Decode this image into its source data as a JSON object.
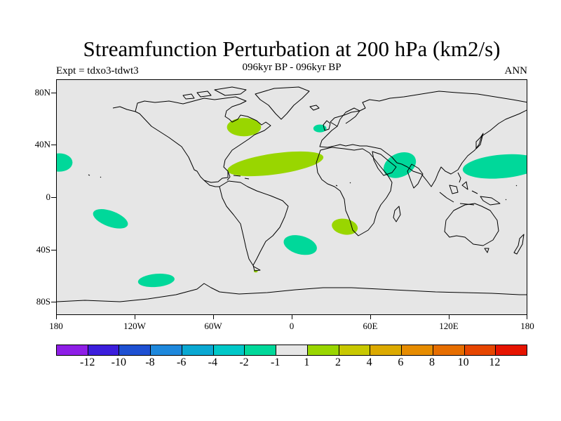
{
  "title": "Streamfunction Perturbation at 200 hPa (km2/s)",
  "experiment": "Expt = tdxo3-tdwt3",
  "period": "096kyr BP - 096kyr BP",
  "season": "ANN",
  "map": {
    "projection": "cylindrical-equidistant",
    "lon_range": [
      -180,
      180
    ],
    "lat_range": [
      -90,
      90
    ],
    "background_color": "#e6e6e6",
    "lat_labels": [
      {
        "lat": 80,
        "text": "80N"
      },
      {
        "lat": 40,
        "text": "40N"
      },
      {
        "lat": 0,
        "text": "0"
      },
      {
        "lat": -40,
        "text": "40S"
      },
      {
        "lat": -80,
        "text": "80S"
      }
    ],
    "lon_labels": [
      {
        "lon": -180,
        "text": "180"
      },
      {
        "lon": -120,
        "text": "120W"
      },
      {
        "lon": -60,
        "text": "60W"
      },
      {
        "lon": 0,
        "text": "0"
      },
      {
        "lon": 60,
        "text": "60E"
      },
      {
        "lon": 120,
        "text": "120E"
      },
      {
        "lon": 180,
        "text": "180"
      }
    ],
    "anomalies": [
      {
        "name": "north-atlantic",
        "lon": -37,
        "lat": 54,
        "rlon": 13,
        "rlat": 7,
        "rot": 0,
        "color": "#99d600"
      },
      {
        "name": "north-africa-atlantic",
        "lon": -13,
        "lat": 26,
        "rlon": 37,
        "rlat": 8,
        "rot": -8,
        "color": "#99d600"
      },
      {
        "name": "southern-africa",
        "lon": 40,
        "lat": -22,
        "rlon": 10,
        "rlat": 6,
        "rot": 10,
        "color": "#99d600"
      },
      {
        "name": "south-atlantic-small",
        "lon": -28,
        "lat": -56,
        "rlon": 1.5,
        "rlat": 1,
        "rot": 0,
        "color": "#99d600"
      },
      {
        "name": "north-pacific-east",
        "lon": -178,
        "lat": 27,
        "rlon": 10,
        "rlat": 7,
        "rot": 0,
        "color": "#00d89a"
      },
      {
        "name": "europe-small",
        "lon": 21,
        "lat": 53,
        "rlon": 5,
        "rlat": 3,
        "rot": 0,
        "color": "#00d89a"
      },
      {
        "name": "india",
        "lon": 82,
        "lat": 25,
        "rlon": 13,
        "rlat": 9,
        "rot": -25,
        "color": "#00d89a"
      },
      {
        "name": "west-pacific",
        "lon": 160,
        "lat": 24,
        "rlon": 30,
        "rlat": 9,
        "rot": -5,
        "color": "#00d89a"
      },
      {
        "name": "south-pacific",
        "lon": -139,
        "lat": -16,
        "rlon": 14,
        "rlat": 6,
        "rot": 20,
        "color": "#00d89a"
      },
      {
        "name": "south-atlantic",
        "lon": 6,
        "lat": -36,
        "rlon": 13,
        "rlat": 7,
        "rot": 15,
        "color": "#00d89a"
      },
      {
        "name": "southeast-pacific",
        "lon": -104,
        "lat": -63,
        "rlon": 14,
        "rlat": 5,
        "rot": -5,
        "color": "#00d89a"
      }
    ]
  },
  "colorbar": {
    "colors": [
      "#8e1ee6",
      "#3c1edc",
      "#1e50d2",
      "#1e88dc",
      "#0aa8d2",
      "#00c8c8",
      "#00d89a",
      "#e6e6e6",
      "#99d600",
      "#c8c800",
      "#dcaa00",
      "#e68c00",
      "#e66e00",
      "#e64600",
      "#e61400"
    ],
    "labels": [
      "-12",
      "-10",
      "-8",
      "-6",
      "-4",
      "-2",
      "-1",
      "1",
      "2",
      "4",
      "6",
      "8",
      "10",
      "12"
    ]
  }
}
